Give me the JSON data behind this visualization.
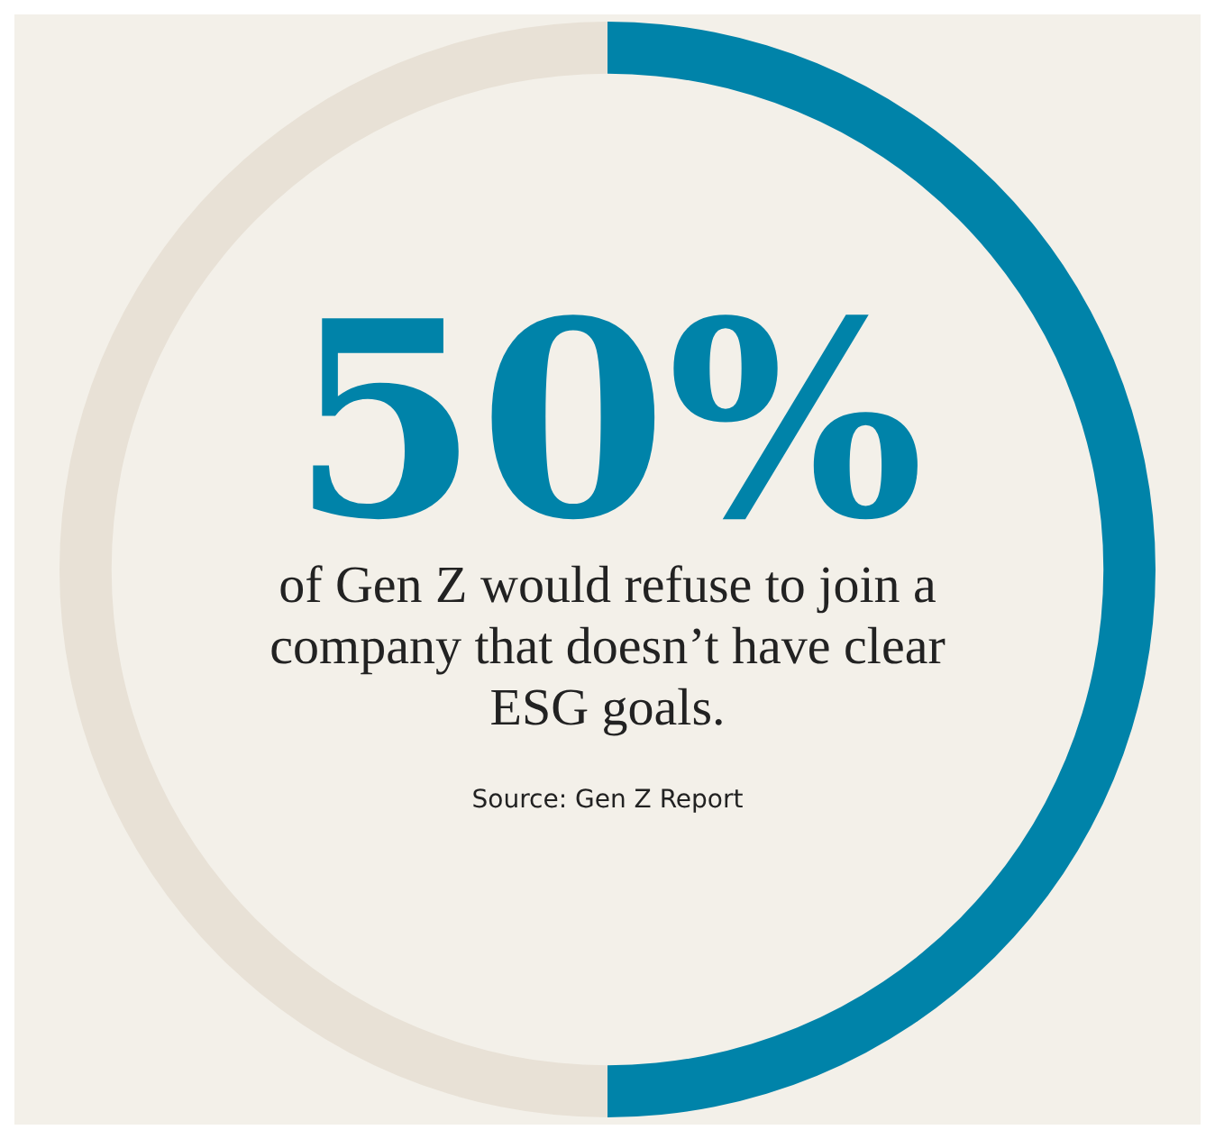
{
  "chart_data": {
    "type": "donut",
    "categories": [
      null,
      null
    ],
    "values": [
      50,
      50
    ],
    "colors": [
      "#0083a9",
      "#e8e1d6"
    ],
    "value_labels": [
      "50%",
      null
    ],
    "legend": false,
    "annotations": [
      "of Gen Z would refuse to join a company that doesn’t have clear ESG goals.",
      "Source: Gen Z Report"
    ]
  }
}
